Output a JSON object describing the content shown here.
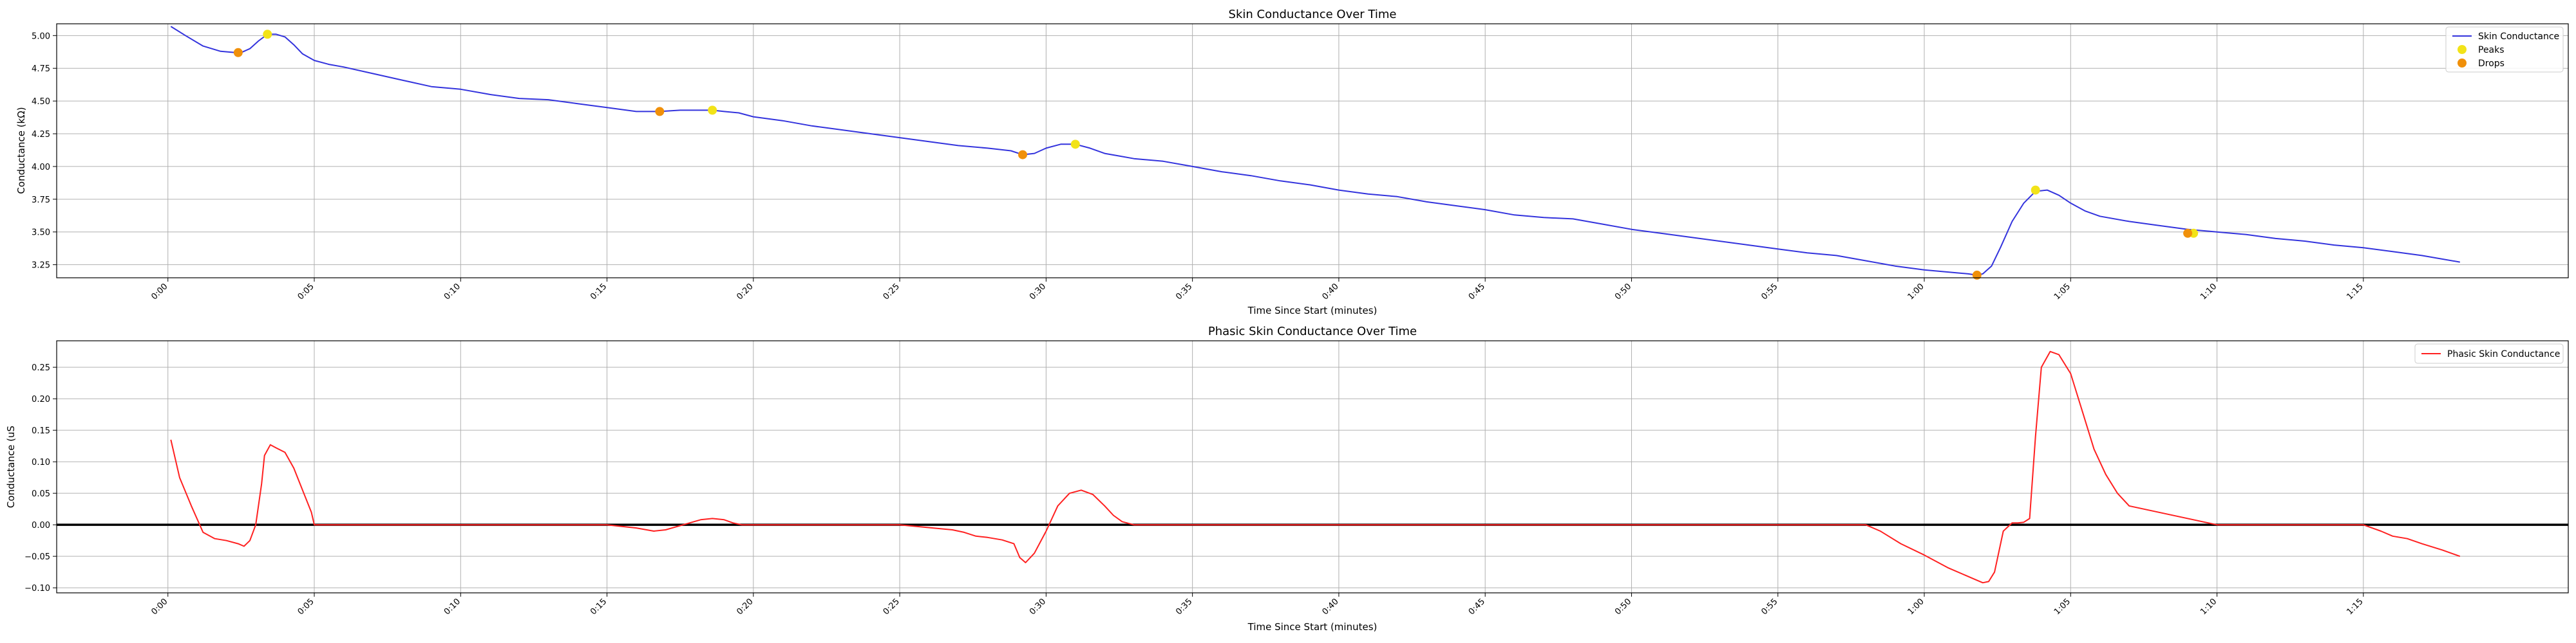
{
  "chart_data": [
    {
      "type": "line",
      "title": "Skin Conductance Over Time",
      "xlabel": "Time Since Start (minutes)",
      "ylabel": "Conductance (kΩ)",
      "xlim": [
        -0.038,
        0.82
      ],
      "ylim": [
        3.15,
        5.09
      ],
      "x_ticks": [
        0,
        0.05,
        0.1,
        0.15,
        0.2,
        0.25,
        0.3,
        0.35,
        0.4,
        0.45,
        0.5,
        0.55,
        0.6,
        0.65,
        0.7,
        0.75
      ],
      "x_tick_labels": [
        "0:00",
        "0:05",
        "0:10",
        "0:15",
        "0:20",
        "0:25",
        "0:30",
        "0:35",
        "0:40",
        "0:45",
        "0:50",
        "0:55",
        "1:00",
        "1:05",
        "1:10",
        "1:15"
      ],
      "y_ticks": [
        3.25,
        3.5,
        3.75,
        4.0,
        4.25,
        4.5,
        4.75,
        5.0
      ],
      "y_tick_labels": [
        "3.25",
        "3.50",
        "3.75",
        "4.00",
        "4.25",
        "4.50",
        "4.75",
        "5.00"
      ],
      "grid": true,
      "legend_position": "top-right",
      "legend": [
        "Skin Conductance",
        "Peaks",
        "Drops"
      ],
      "colors": {
        "line": "#3333dd",
        "peaks": "#f2e318",
        "drops": "#f0900a",
        "grid": "#b0b0b0"
      },
      "series": [
        {
          "name": "Skin Conductance",
          "style": "line",
          "x": [
            0.001,
            0.006,
            0.012,
            0.018,
            0.023,
            0.025,
            0.028,
            0.031,
            0.034,
            0.037,
            0.04,
            0.043,
            0.046,
            0.05,
            0.055,
            0.06,
            0.07,
            0.08,
            0.09,
            0.1,
            0.11,
            0.12,
            0.13,
            0.14,
            0.15,
            0.16,
            0.168,
            0.175,
            0.18,
            0.186,
            0.19,
            0.195,
            0.2,
            0.21,
            0.22,
            0.23,
            0.24,
            0.25,
            0.26,
            0.27,
            0.28,
            0.288,
            0.292,
            0.296,
            0.3,
            0.305,
            0.31,
            0.315,
            0.32,
            0.325,
            0.33,
            0.34,
            0.35,
            0.36,
            0.37,
            0.38,
            0.39,
            0.4,
            0.41,
            0.42,
            0.43,
            0.44,
            0.45,
            0.46,
            0.47,
            0.48,
            0.49,
            0.5,
            0.51,
            0.52,
            0.53,
            0.54,
            0.55,
            0.56,
            0.57,
            0.58,
            0.59,
            0.6,
            0.61,
            0.615,
            0.618,
            0.62,
            0.623,
            0.626,
            0.63,
            0.634,
            0.638,
            0.642,
            0.646,
            0.65,
            0.655,
            0.66,
            0.67,
            0.68,
            0.69,
            0.7,
            0.71,
            0.72,
            0.73,
            0.74,
            0.75,
            0.76,
            0.77,
            0.783
          ],
          "y": [
            5.07,
            5.0,
            4.92,
            4.88,
            4.87,
            4.87,
            4.9,
            4.96,
            5.01,
            5.01,
            4.99,
            4.93,
            4.86,
            4.81,
            4.78,
            4.76,
            4.71,
            4.66,
            4.61,
            4.59,
            4.55,
            4.52,
            4.51,
            4.48,
            4.45,
            4.42,
            4.42,
            4.43,
            4.43,
            4.43,
            4.42,
            4.41,
            4.38,
            4.35,
            4.31,
            4.28,
            4.25,
            4.22,
            4.19,
            4.16,
            4.14,
            4.12,
            4.09,
            4.1,
            4.14,
            4.17,
            4.17,
            4.14,
            4.1,
            4.08,
            4.06,
            4.04,
            4.0,
            3.96,
            3.93,
            3.89,
            3.86,
            3.82,
            3.79,
            3.77,
            3.73,
            3.7,
            3.67,
            3.63,
            3.61,
            3.6,
            3.56,
            3.52,
            3.49,
            3.46,
            3.43,
            3.4,
            3.37,
            3.34,
            3.32,
            3.28,
            3.24,
            3.21,
            3.19,
            3.18,
            3.17,
            3.18,
            3.24,
            3.38,
            3.58,
            3.72,
            3.81,
            3.82,
            3.78,
            3.72,
            3.66,
            3.62,
            3.58,
            3.55,
            3.52,
            3.5,
            3.48,
            3.45,
            3.43,
            3.4,
            3.38,
            3.35,
            3.32,
            3.27
          ]
        },
        {
          "name": "Peaks",
          "style": "markers",
          "x": [
            0.034,
            0.186,
            0.31,
            0.638,
            0.692
          ],
          "y": [
            5.01,
            4.43,
            4.17,
            3.82,
            3.49
          ]
        },
        {
          "name": "Drops",
          "style": "markers",
          "x": [
            0.024,
            0.168,
            0.292,
            0.618,
            0.69
          ],
          "y": [
            4.87,
            4.42,
            4.09,
            3.17,
            3.49
          ]
        }
      ]
    },
    {
      "type": "line",
      "title": "Phasic Skin Conductance Over Time",
      "xlabel": "Time Since Start (minutes)",
      "ylabel": "Conductance (uS",
      "xlim": [
        -0.038,
        0.82
      ],
      "ylim": [
        -0.108,
        0.292
      ],
      "x_ticks": [
        0,
        0.05,
        0.1,
        0.15,
        0.2,
        0.25,
        0.3,
        0.35,
        0.4,
        0.45,
        0.5,
        0.55,
        0.6,
        0.65,
        0.7,
        0.75
      ],
      "x_tick_labels": [
        "0:00",
        "0:05",
        "0:10",
        "0:15",
        "0:20",
        "0:25",
        "0:30",
        "0:35",
        "0:40",
        "0:45",
        "0:50",
        "0:55",
        "1:00",
        "1:05",
        "1:10",
        "1:15"
      ],
      "y_ticks": [
        -0.1,
        -0.05,
        0.0,
        0.05,
        0.1,
        0.15,
        0.2,
        0.25
      ],
      "y_tick_labels": [
        "−0.10",
        "−0.05",
        "0.00",
        "0.05",
        "0.10",
        "0.15",
        "0.20",
        "0.25"
      ],
      "grid": true,
      "legend_position": "top-right",
      "legend": [
        "Phasic Skin Conductance"
      ],
      "colors": {
        "line": "#ff2020",
        "zero_line": "#000000",
        "grid": "#b0b0b0"
      },
      "series": [
        {
          "name": "Phasic Skin Conductance",
          "style": "line",
          "x": [
            0.001,
            0.004,
            0.008,
            0.012,
            0.016,
            0.02,
            0.024,
            0.026,
            0.028,
            0.03,
            0.032,
            0.033,
            0.035,
            0.037,
            0.04,
            0.043,
            0.046,
            0.049,
            0.05,
            0.1,
            0.15,
            0.16,
            0.166,
            0.17,
            0.176,
            0.182,
            0.186,
            0.19,
            0.193,
            0.196,
            0.2,
            0.25,
            0.268,
            0.272,
            0.276,
            0.28,
            0.285,
            0.289,
            0.291,
            0.293,
            0.296,
            0.3,
            0.304,
            0.308,
            0.312,
            0.316,
            0.32,
            0.323,
            0.326,
            0.33,
            0.4,
            0.5,
            0.58,
            0.585,
            0.592,
            0.6,
            0.608,
            0.614,
            0.618,
            0.62,
            0.622,
            0.624,
            0.627,
            0.63,
            0.632,
            0.634,
            0.636,
            0.638,
            0.64,
            0.643,
            0.646,
            0.65,
            0.654,
            0.658,
            0.662,
            0.666,
            0.67,
            0.7,
            0.75,
            0.756,
            0.76,
            0.765,
            0.77,
            0.777,
            0.783
          ],
          "y": [
            0.135,
            0.075,
            0.03,
            -0.012,
            -0.022,
            -0.025,
            -0.03,
            -0.034,
            -0.025,
            0.0,
            0.065,
            0.11,
            0.127,
            0.122,
            0.115,
            0.09,
            0.055,
            0.02,
            0.0,
            0.0,
            0.0,
            -0.005,
            -0.01,
            -0.008,
            0.0,
            0.008,
            0.01,
            0.008,
            0.003,
            0.0,
            0.0,
            0.0,
            -0.008,
            -0.012,
            -0.018,
            -0.02,
            -0.024,
            -0.03,
            -0.052,
            -0.06,
            -0.045,
            -0.01,
            0.03,
            0.05,
            0.055,
            0.048,
            0.03,
            0.015,
            0.005,
            0.0,
            0.0,
            0.0,
            0.0,
            -0.01,
            -0.03,
            -0.048,
            -0.068,
            -0.08,
            -0.088,
            -0.092,
            -0.09,
            -0.075,
            -0.01,
            0.003,
            0.003,
            0.004,
            0.01,
            0.14,
            0.25,
            0.275,
            0.27,
            0.24,
            0.18,
            0.12,
            0.08,
            0.05,
            0.03,
            0.0,
            0.0,
            -0.01,
            -0.018,
            -0.022,
            -0.03,
            -0.04,
            -0.05
          ]
        }
      ]
    }
  ]
}
